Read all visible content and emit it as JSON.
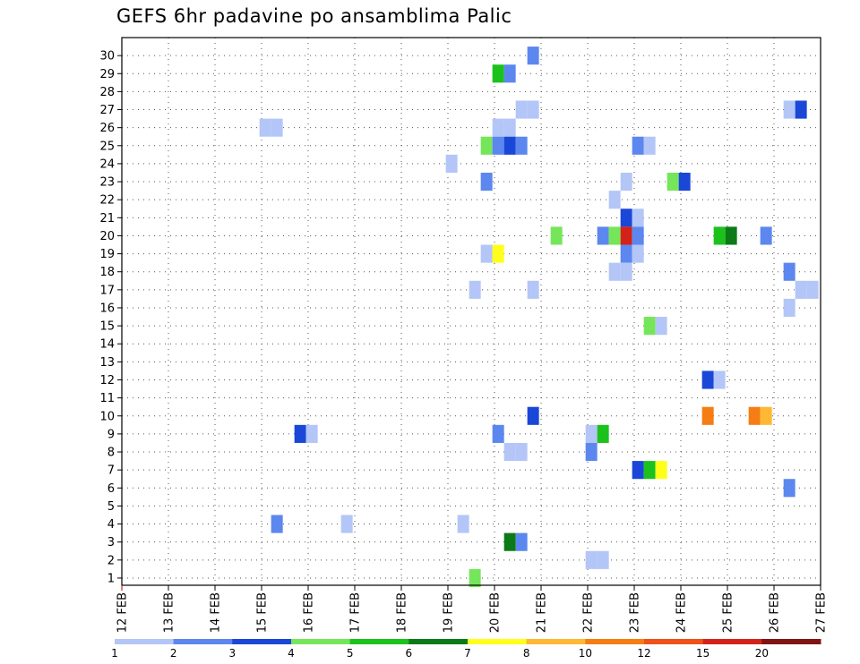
{
  "chart_data": {
    "type": "heatmap",
    "title": "GEFS 6hr padavine po ansamblima Palic",
    "xlabel": "",
    "ylabel": "",
    "x_tick_labels": [
      "12 FEB",
      "13 FEB",
      "14 FEB",
      "15 FEB",
      "16 FEB",
      "17 FEB",
      "18 FEB",
      "19 FEB",
      "20 FEB",
      "21 FEB",
      "22 FEB",
      "23 FEB",
      "24 FEB",
      "25 FEB",
      "26 FEB",
      "27 FEB"
    ],
    "y_tick_labels": [
      "1",
      "2",
      "3",
      "4",
      "5",
      "6",
      "7",
      "8",
      "9",
      "10",
      "11",
      "12",
      "13",
      "14",
      "15",
      "16",
      "17",
      "18",
      "19",
      "20",
      "21",
      "22",
      "23",
      "24",
      "25",
      "26",
      "27",
      "28",
      "29",
      "30"
    ],
    "x_range": [
      0,
      15
    ],
    "y_range": [
      0,
      30
    ],
    "grid": true,
    "colorbar": {
      "labels": [
        "1",
        "2",
        "3",
        "4",
        "5",
        "6",
        "7",
        "8",
        "10",
        "12",
        "15",
        "20"
      ],
      "colors": [
        "#b3c6f7",
        "#5c87ee",
        "#1a47d8",
        "#75e659",
        "#1cc21c",
        "#0c7a16",
        "#ffff1a",
        "#ffb833",
        "#f57d14",
        "#f0501a",
        "#d4221a",
        "#801414"
      ]
    },
    "cells": [
      {
        "x": 8.83,
        "y": 30,
        "c": 2
      },
      {
        "x": 8.08,
        "y": 29,
        "c": 5
      },
      {
        "x": 8.33,
        "y": 29,
        "c": 2
      },
      {
        "x": 8.58,
        "y": 27,
        "c": 1
      },
      {
        "x": 8.83,
        "y": 27,
        "c": 1
      },
      {
        "x": 14.33,
        "y": 27,
        "c": 1
      },
      {
        "x": 14.58,
        "y": 27,
        "c": 3
      },
      {
        "x": 3.08,
        "y": 26,
        "c": 1
      },
      {
        "x": 3.33,
        "y": 26,
        "c": 1
      },
      {
        "x": 8.08,
        "y": 26,
        "c": 1
      },
      {
        "x": 8.33,
        "y": 26,
        "c": 1
      },
      {
        "x": 7.83,
        "y": 25,
        "c": 4
      },
      {
        "x": 8.08,
        "y": 25,
        "c": 2
      },
      {
        "x": 8.33,
        "y": 25,
        "c": 3
      },
      {
        "x": 8.58,
        "y": 25,
        "c": 2
      },
      {
        "x": 11.08,
        "y": 25,
        "c": 2
      },
      {
        "x": 11.33,
        "y": 25,
        "c": 1
      },
      {
        "x": 7.08,
        "y": 24,
        "c": 1
      },
      {
        "x": 7.83,
        "y": 23,
        "c": 2
      },
      {
        "x": 10.83,
        "y": 23,
        "c": 1
      },
      {
        "x": 11.83,
        "y": 23,
        "c": 4
      },
      {
        "x": 12.08,
        "y": 23,
        "c": 3
      },
      {
        "x": 10.58,
        "y": 22,
        "c": 1
      },
      {
        "x": 10.83,
        "y": 21,
        "c": 3
      },
      {
        "x": 11.08,
        "y": 21,
        "c": 1
      },
      {
        "x": 9.33,
        "y": 20,
        "c": 4
      },
      {
        "x": 10.33,
        "y": 20,
        "c": 2
      },
      {
        "x": 10.58,
        "y": 20,
        "c": 4
      },
      {
        "x": 10.83,
        "y": 20,
        "c": 11
      },
      {
        "x": 11.08,
        "y": 20,
        "c": 2
      },
      {
        "x": 12.83,
        "y": 20,
        "c": 5
      },
      {
        "x": 13.08,
        "y": 20,
        "c": 6
      },
      {
        "x": 13.83,
        "y": 20,
        "c": 2
      },
      {
        "x": 10.83,
        "y": 19,
        "c": 2
      },
      {
        "x": 11.08,
        "y": 19,
        "c": 1
      },
      {
        "x": 7.83,
        "y": 19,
        "c": 1
      },
      {
        "x": 8.08,
        "y": 19,
        "c": 7
      },
      {
        "x": 10.58,
        "y": 18,
        "c": 1
      },
      {
        "x": 10.83,
        "y": 18,
        "c": 1
      },
      {
        "x": 14.33,
        "y": 18,
        "c": 2
      },
      {
        "x": 7.58,
        "y": 17,
        "c": 1
      },
      {
        "x": 8.83,
        "y": 17,
        "c": 1
      },
      {
        "x": 14.58,
        "y": 17,
        "c": 1
      },
      {
        "x": 14.83,
        "y": 17,
        "c": 1
      },
      {
        "x": 14.33,
        "y": 16,
        "c": 1
      },
      {
        "x": 11.33,
        "y": 15,
        "c": 4
      },
      {
        "x": 11.58,
        "y": 15,
        "c": 1
      },
      {
        "x": 12.58,
        "y": 12,
        "c": 3
      },
      {
        "x": 12.83,
        "y": 12,
        "c": 1
      },
      {
        "x": 8.83,
        "y": 10,
        "c": 3
      },
      {
        "x": 12.58,
        "y": 10,
        "c": 9
      },
      {
        "x": 13.58,
        "y": 10,
        "c": 9
      },
      {
        "x": 13.83,
        "y": 10,
        "c": 8
      },
      {
        "x": 3.83,
        "y": 9,
        "c": 3
      },
      {
        "x": 4.08,
        "y": 9,
        "c": 1
      },
      {
        "x": 8.08,
        "y": 9,
        "c": 2
      },
      {
        "x": 10.08,
        "y": 9,
        "c": 1
      },
      {
        "x": 10.33,
        "y": 9,
        "c": 5
      },
      {
        "x": 8.33,
        "y": 8,
        "c": 1
      },
      {
        "x": 8.58,
        "y": 8,
        "c": 1
      },
      {
        "x": 10.08,
        "y": 8,
        "c": 2
      },
      {
        "x": 11.08,
        "y": 7,
        "c": 3
      },
      {
        "x": 11.33,
        "y": 7,
        "c": 5
      },
      {
        "x": 11.58,
        "y": 7,
        "c": 7
      },
      {
        "x": 14.33,
        "y": 6,
        "c": 2
      },
      {
        "x": 3.33,
        "y": 4,
        "c": 2
      },
      {
        "x": 4.83,
        "y": 4,
        "c": 1
      },
      {
        "x": 7.33,
        "y": 4,
        "c": 1
      },
      {
        "x": 8.33,
        "y": 3,
        "c": 6
      },
      {
        "x": 8.58,
        "y": 3,
        "c": 2
      },
      {
        "x": 10.08,
        "y": 2,
        "c": 1
      },
      {
        "x": 10.33,
        "y": 2,
        "c": 1
      },
      {
        "x": 7.58,
        "y": 1,
        "c": 4
      }
    ]
  }
}
